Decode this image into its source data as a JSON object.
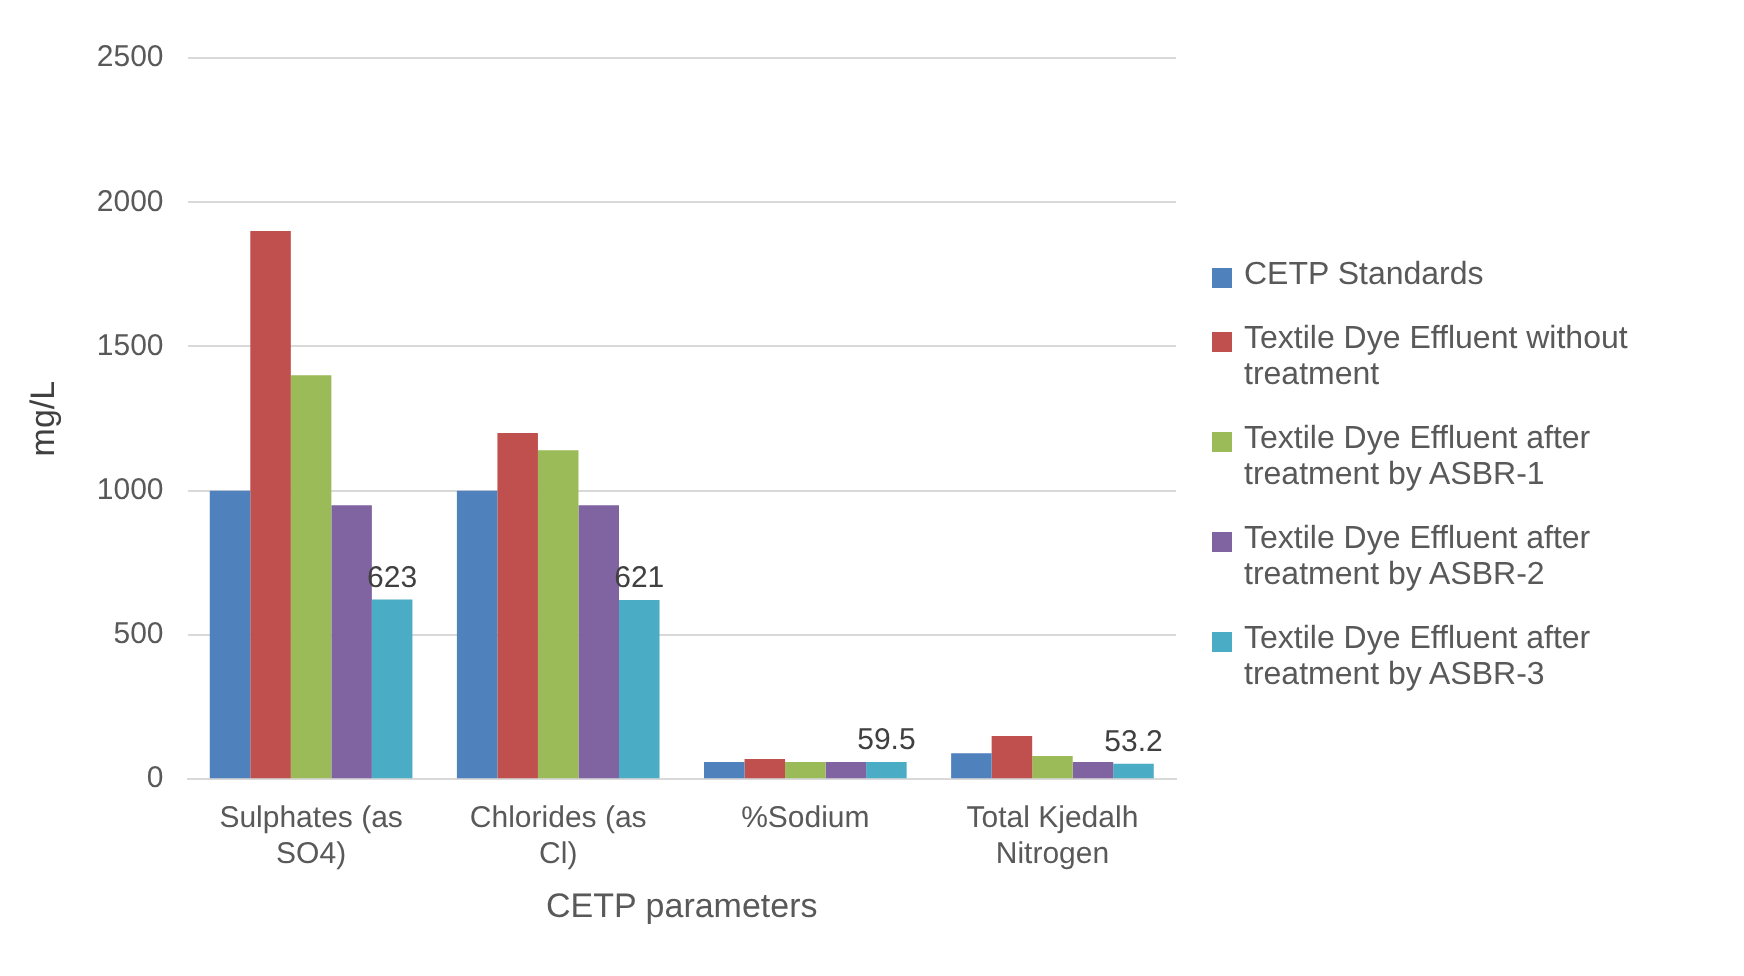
{
  "chart_data": {
    "type": "bar",
    "xlabel": "CETP parameters",
    "ylabel": "mg/L",
    "categories": [
      "Sulphates (as SO4)",
      "Chlorides (as Cl)",
      "%Sodium",
      "Total Kjedalh Nitrogen"
    ],
    "series": [
      {
        "name": "CETP Standards",
        "color": "#4f81bd",
        "values": [
          1000,
          1000,
          60,
          90
        ]
      },
      {
        "name": "Textile Dye Effluent without treatment",
        "color": "#c0504d",
        "values": [
          1900,
          1200,
          70,
          150
        ]
      },
      {
        "name": "Textile Dye Effluent after treatment by ASBR-1",
        "color": "#9bbb59",
        "values": [
          1400,
          1140,
          60,
          80
        ]
      },
      {
        "name": "Textile Dye Effluent after treatment by ASBR-2",
        "color": "#8064a2",
        "values": [
          950,
          950,
          60,
          60
        ]
      },
      {
        "name": "Textile Dye Effluent after treatment by ASBR-3",
        "color": "#4bacc6",
        "values": [
          623,
          621,
          59.5,
          53.2
        ],
        "value_labels": [
          "623",
          "621",
          "59.5",
          "53.2"
        ]
      }
    ],
    "ylim": [
      0,
      2500
    ],
    "yticks": [
      0,
      500,
      1000,
      1500,
      2000,
      2500
    ],
    "grid": "y",
    "legend": "right"
  }
}
